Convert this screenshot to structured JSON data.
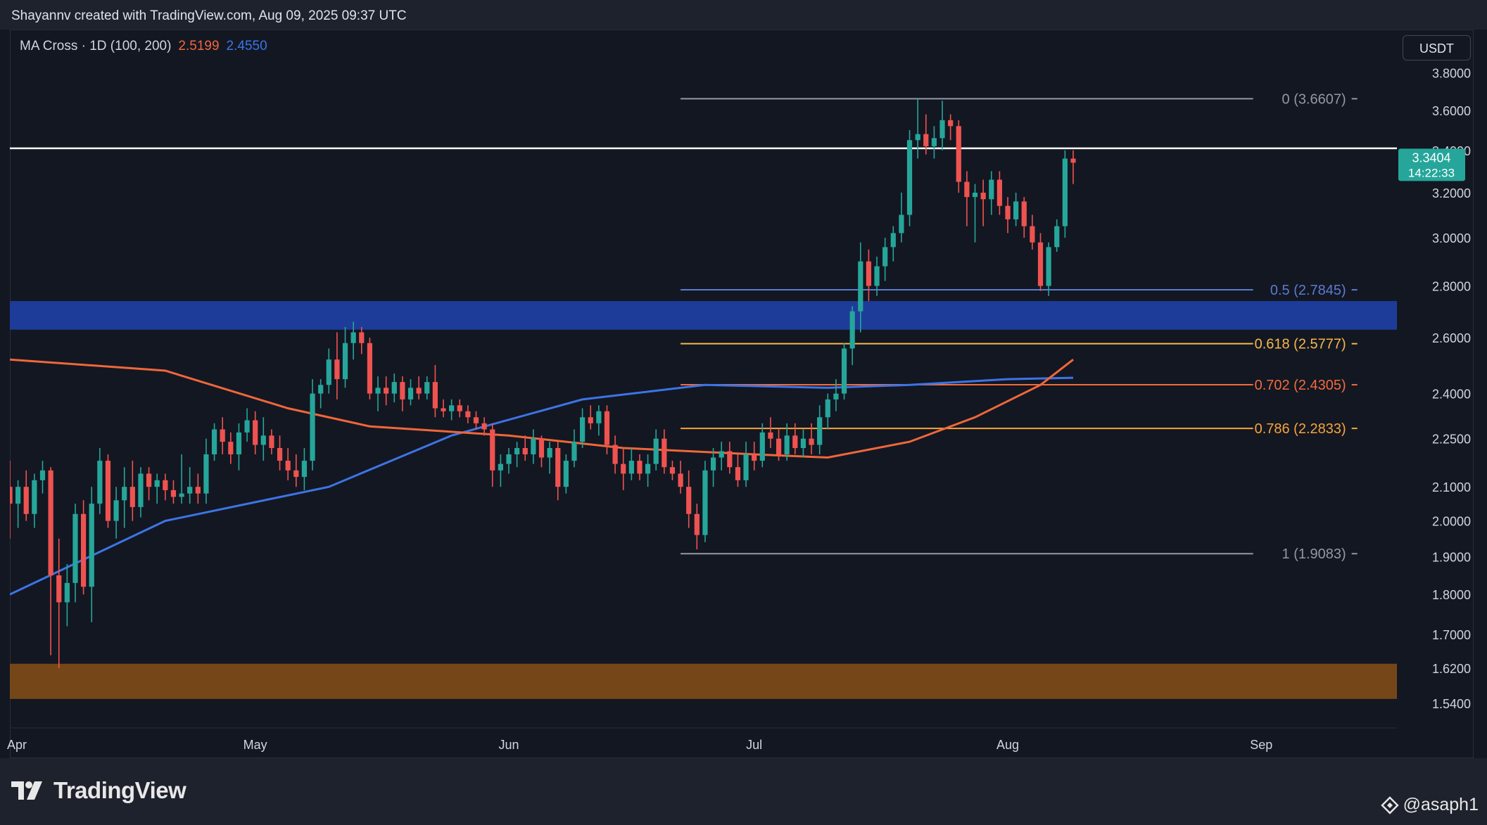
{
  "header": {
    "attribution": "Shayannv created with TradingView.com, Aug 09, 2025 09:37 UTC"
  },
  "legend": {
    "title": "MA Cross · 1D (100, 200)",
    "ma100_value": "2.5199",
    "ma200_value": "2.4550"
  },
  "currency_button": {
    "label": "USDT"
  },
  "price_tag": {
    "price": "3.3404",
    "countdown": "14:22:33"
  },
  "footer": {
    "brand": "TradingView",
    "handle": "@asaph1"
  },
  "colors": {
    "background": "#131722",
    "up": "#26a69a",
    "down": "#ef5350",
    "ma100": "#f0673a",
    "ma200": "#3d74e6",
    "support_zone": "#1e3ea0",
    "demand_zone": "#7a4a18",
    "resistance": "#ffffff"
  },
  "chart_data": {
    "type": "candlestick",
    "symbol_quote": "USDT",
    "y_axis": {
      "scale": "log",
      "ticks": [
        "3.8000",
        "3.6000",
        "3.4000",
        "3.2000",
        "3.0000",
        "2.8000",
        "2.6000",
        "2.4000",
        "2.2500",
        "2.1000",
        "2.0000",
        "1.9000",
        "1.8000",
        "1.7000",
        "1.6200",
        "1.5400"
      ]
    },
    "x_axis": {
      "ticks": [
        "Apr",
        "May",
        "Jun",
        "Jul",
        "Aug",
        "Sep"
      ],
      "tick_dates": [
        "2025-04-01",
        "2025-05-01",
        "2025-06-01",
        "2025-07-01",
        "2025-08-01",
        "2025-09-01"
      ]
    },
    "horizontal_lines": [
      {
        "name": "resistance",
        "price": 3.41
      }
    ],
    "zones": [
      {
        "name": "support-zone",
        "low": 2.63,
        "high": 2.74
      },
      {
        "name": "demand-zone",
        "low": 1.55,
        "high": 1.63
      }
    ],
    "fibonacci": {
      "start_date": "2025-06-22",
      "end_date": "2025-08-31",
      "levels": [
        {
          "level": "0",
          "price": 3.6607,
          "label": "0 (3.6607)",
          "color": "#9598a1"
        },
        {
          "level": "0.5",
          "price": 2.7845,
          "label": "0.5 (2.7845)",
          "color": "#5b7bd1"
        },
        {
          "level": "0.618",
          "price": 2.5777,
          "label": "0.618 (2.5777)",
          "color": "#f7b84a"
        },
        {
          "level": "0.702",
          "price": 2.4305,
          "label": "0.702 (2.4305)",
          "color": "#f26b3a"
        },
        {
          "level": "0.786",
          "price": 2.2833,
          "label": "0.786 (2.2833)",
          "color": "#f7a43a"
        },
        {
          "level": "1",
          "price": 1.9083,
          "label": "1 (1.9083)",
          "color": "#9598a1"
        }
      ]
    },
    "ma100": {
      "name": "MA 100",
      "points": [
        [
          "2025-04-01",
          2.52
        ],
        [
          "2025-04-20",
          2.48
        ],
        [
          "2025-05-05",
          2.35
        ],
        [
          "2025-05-15",
          2.29
        ],
        [
          "2025-06-01",
          2.26
        ],
        [
          "2025-06-15",
          2.22
        ],
        [
          "2025-07-01",
          2.2
        ],
        [
          "2025-07-10",
          2.19
        ],
        [
          "2025-07-20",
          2.24
        ],
        [
          "2025-07-28",
          2.32
        ],
        [
          "2025-08-05",
          2.43
        ],
        [
          "2025-08-09",
          2.52
        ]
      ]
    },
    "ma200": {
      "name": "MA 200",
      "points": [
        [
          "2025-04-01",
          1.8
        ],
        [
          "2025-04-20",
          2.0
        ],
        [
          "2025-05-10",
          2.1
        ],
        [
          "2025-05-25",
          2.26
        ],
        [
          "2025-06-10",
          2.38
        ],
        [
          "2025-06-25",
          2.43
        ],
        [
          "2025-07-10",
          2.42
        ],
        [
          "2025-07-20",
          2.43
        ],
        [
          "2025-08-01",
          2.45
        ],
        [
          "2025-08-09",
          2.455
        ]
      ]
    },
    "candles": [
      [
        "2025-04-01",
        2.1,
        2.18,
        1.95,
        2.05
      ],
      [
        "2025-04-02",
        2.05,
        2.12,
        1.98,
        2.1
      ],
      [
        "2025-04-03",
        2.1,
        2.15,
        2.0,
        2.02
      ],
      [
        "2025-04-04",
        2.02,
        2.14,
        1.98,
        2.12
      ],
      [
        "2025-04-05",
        2.12,
        2.18,
        2.08,
        2.15
      ],
      [
        "2025-04-06",
        2.15,
        2.16,
        1.65,
        1.85
      ],
      [
        "2025-04-07",
        1.85,
        1.95,
        1.62,
        1.78
      ],
      [
        "2025-04-08",
        1.78,
        1.88,
        1.72,
        1.83
      ],
      [
        "2025-04-09",
        1.83,
        2.05,
        1.78,
        2.02
      ],
      [
        "2025-04-10",
        2.02,
        2.06,
        1.8,
        1.82
      ],
      [
        "2025-04-11",
        1.82,
        2.1,
        1.73,
        2.05
      ],
      [
        "2025-04-12",
        2.05,
        2.22,
        2.02,
        2.18
      ],
      [
        "2025-04-13",
        2.18,
        2.2,
        1.98,
        2.0
      ],
      [
        "2025-04-14",
        2.0,
        2.1,
        1.95,
        2.06
      ],
      [
        "2025-04-15",
        2.06,
        2.16,
        1.98,
        2.1
      ],
      [
        "2025-04-16",
        2.1,
        2.18,
        2.0,
        2.04
      ],
      [
        "2025-04-17",
        2.04,
        2.16,
        2.01,
        2.14
      ],
      [
        "2025-04-18",
        2.14,
        2.16,
        2.06,
        2.1
      ],
      [
        "2025-04-19",
        2.1,
        2.14,
        2.05,
        2.12
      ],
      [
        "2025-04-20",
        2.12,
        2.14,
        2.06,
        2.09
      ],
      [
        "2025-04-21",
        2.09,
        2.12,
        2.05,
        2.07
      ],
      [
        "2025-04-22",
        2.07,
        2.2,
        2.05,
        2.08
      ],
      [
        "2025-04-23",
        2.08,
        2.16,
        2.05,
        2.1
      ],
      [
        "2025-04-24",
        2.1,
        2.14,
        2.05,
        2.08
      ],
      [
        "2025-04-25",
        2.08,
        2.25,
        2.05,
        2.2
      ],
      [
        "2025-04-26",
        2.2,
        2.3,
        2.18,
        2.28
      ],
      [
        "2025-04-27",
        2.28,
        2.32,
        2.2,
        2.24
      ],
      [
        "2025-04-28",
        2.24,
        2.27,
        2.17,
        2.2
      ],
      [
        "2025-04-29",
        2.2,
        2.3,
        2.15,
        2.27
      ],
      [
        "2025-04-30",
        2.27,
        2.35,
        2.24,
        2.31
      ],
      [
        "2025-05-01",
        2.31,
        2.34,
        2.2,
        2.23
      ],
      [
        "2025-05-02",
        2.23,
        2.32,
        2.18,
        2.26
      ],
      [
        "2025-05-03",
        2.26,
        2.28,
        2.2,
        2.22
      ],
      [
        "2025-05-04",
        2.22,
        2.26,
        2.15,
        2.18
      ],
      [
        "2025-05-05",
        2.18,
        2.22,
        2.12,
        2.15
      ],
      [
        "2025-05-06",
        2.15,
        2.2,
        2.1,
        2.13
      ],
      [
        "2025-05-07",
        2.13,
        2.22,
        2.09,
        2.18
      ],
      [
        "2025-05-08",
        2.18,
        2.45,
        2.15,
        2.4
      ],
      [
        "2025-05-09",
        2.4,
        2.45,
        2.35,
        2.43
      ],
      [
        "2025-05-10",
        2.43,
        2.56,
        2.4,
        2.52
      ],
      [
        "2025-05-11",
        2.52,
        2.62,
        2.38,
        2.45
      ],
      [
        "2025-05-12",
        2.45,
        2.64,
        2.42,
        2.58
      ],
      [
        "2025-05-13",
        2.58,
        2.66,
        2.52,
        2.62
      ],
      [
        "2025-05-14",
        2.62,
        2.64,
        2.54,
        2.58
      ],
      [
        "2025-05-15",
        2.58,
        2.6,
        2.38,
        2.4
      ],
      [
        "2025-05-16",
        2.4,
        2.46,
        2.34,
        2.42
      ],
      [
        "2025-05-17",
        2.42,
        2.46,
        2.36,
        2.4
      ],
      [
        "2025-05-18",
        2.4,
        2.47,
        2.37,
        2.44
      ],
      [
        "2025-05-19",
        2.44,
        2.46,
        2.34,
        2.38
      ],
      [
        "2025-05-20",
        2.38,
        2.45,
        2.36,
        2.42
      ],
      [
        "2025-05-21",
        2.42,
        2.46,
        2.38,
        2.4
      ],
      [
        "2025-05-22",
        2.4,
        2.46,
        2.38,
        2.44
      ],
      [
        "2025-05-23",
        2.44,
        2.5,
        2.32,
        2.35
      ],
      [
        "2025-05-24",
        2.35,
        2.38,
        2.32,
        2.34
      ],
      [
        "2025-05-25",
        2.34,
        2.38,
        2.31,
        2.36
      ],
      [
        "2025-05-26",
        2.36,
        2.38,
        2.32,
        2.34
      ],
      [
        "2025-05-27",
        2.34,
        2.36,
        2.3,
        2.32
      ],
      [
        "2025-05-28",
        2.32,
        2.34,
        2.28,
        2.3
      ],
      [
        "2025-05-29",
        2.3,
        2.32,
        2.26,
        2.28
      ],
      [
        "2025-05-30",
        2.28,
        2.3,
        2.1,
        2.15
      ],
      [
        "2025-05-31",
        2.15,
        2.2,
        2.1,
        2.17
      ],
      [
        "2025-06-01",
        2.17,
        2.22,
        2.14,
        2.2
      ],
      [
        "2025-06-02",
        2.2,
        2.24,
        2.16,
        2.22
      ],
      [
        "2025-06-03",
        2.22,
        2.26,
        2.18,
        2.2
      ],
      [
        "2025-06-04",
        2.2,
        2.28,
        2.17,
        2.25
      ],
      [
        "2025-06-05",
        2.25,
        2.26,
        2.16,
        2.19
      ],
      [
        "2025-06-06",
        2.19,
        2.24,
        2.14,
        2.22
      ],
      [
        "2025-06-07",
        2.22,
        2.24,
        2.06,
        2.1
      ],
      [
        "2025-06-08",
        2.1,
        2.2,
        2.08,
        2.18
      ],
      [
        "2025-06-09",
        2.18,
        2.28,
        2.16,
        2.24
      ],
      [
        "2025-06-10",
        2.24,
        2.35,
        2.22,
        2.32
      ],
      [
        "2025-06-11",
        2.32,
        2.36,
        2.28,
        2.3
      ],
      [
        "2025-06-12",
        2.3,
        2.36,
        2.26,
        2.34
      ],
      [
        "2025-06-13",
        2.34,
        2.36,
        2.2,
        2.23
      ],
      [
        "2025-06-14",
        2.23,
        2.26,
        2.14,
        2.17
      ],
      [
        "2025-06-15",
        2.17,
        2.22,
        2.09,
        2.14
      ],
      [
        "2025-06-16",
        2.14,
        2.22,
        2.12,
        2.18
      ],
      [
        "2025-06-17",
        2.18,
        2.2,
        2.12,
        2.14
      ],
      [
        "2025-06-18",
        2.14,
        2.2,
        2.1,
        2.17
      ],
      [
        "2025-06-19",
        2.17,
        2.28,
        2.15,
        2.25
      ],
      [
        "2025-06-20",
        2.25,
        2.28,
        2.14,
        2.16
      ],
      [
        "2025-06-21",
        2.16,
        2.18,
        2.12,
        2.14
      ],
      [
        "2025-06-22",
        2.14,
        2.18,
        2.08,
        2.1
      ],
      [
        "2025-06-23",
        2.1,
        2.15,
        1.98,
        2.02
      ],
      [
        "2025-06-24",
        2.02,
        2.05,
        1.92,
        1.96
      ],
      [
        "2025-06-25",
        1.96,
        2.18,
        1.94,
        2.15
      ],
      [
        "2025-06-26",
        2.15,
        2.22,
        2.1,
        2.19
      ],
      [
        "2025-06-27",
        2.19,
        2.24,
        2.15,
        2.21
      ],
      [
        "2025-06-28",
        2.21,
        2.24,
        2.14,
        2.16
      ],
      [
        "2025-06-29",
        2.16,
        2.2,
        2.1,
        2.12
      ],
      [
        "2025-06-30",
        2.12,
        2.24,
        2.1,
        2.2
      ],
      [
        "2025-07-01",
        2.2,
        2.24,
        2.15,
        2.18
      ],
      [
        "2025-07-02",
        2.18,
        2.3,
        2.16,
        2.27
      ],
      [
        "2025-07-03",
        2.27,
        2.32,
        2.22,
        2.25
      ],
      [
        "2025-07-04",
        2.25,
        2.28,
        2.18,
        2.2
      ],
      [
        "2025-07-05",
        2.2,
        2.3,
        2.18,
        2.26
      ],
      [
        "2025-07-06",
        2.26,
        2.3,
        2.2,
        2.22
      ],
      [
        "2025-07-07",
        2.22,
        2.28,
        2.19,
        2.25
      ],
      [
        "2025-07-08",
        2.25,
        2.3,
        2.2,
        2.23
      ],
      [
        "2025-07-09",
        2.23,
        2.36,
        2.2,
        2.32
      ],
      [
        "2025-07-10",
        2.32,
        2.4,
        2.28,
        2.38
      ],
      [
        "2025-07-11",
        2.38,
        2.45,
        2.34,
        2.4
      ],
      [
        "2025-07-12",
        2.4,
        2.58,
        2.38,
        2.56
      ],
      [
        "2025-07-13",
        2.56,
        2.72,
        2.5,
        2.7
      ],
      [
        "2025-07-14",
        2.7,
        2.98,
        2.62,
        2.9
      ],
      [
        "2025-07-15",
        2.9,
        2.95,
        2.74,
        2.8
      ],
      [
        "2025-07-16",
        2.8,
        2.92,
        2.76,
        2.88
      ],
      [
        "2025-07-17",
        2.88,
        3.0,
        2.82,
        2.96
      ],
      [
        "2025-07-18",
        2.96,
        3.05,
        2.9,
        3.02
      ],
      [
        "2025-07-19",
        3.02,
        3.2,
        2.98,
        3.1
      ],
      [
        "2025-07-20",
        3.1,
        3.5,
        3.05,
        3.45
      ],
      [
        "2025-07-21",
        3.45,
        3.66,
        3.36,
        3.48
      ],
      [
        "2025-07-22",
        3.48,
        3.58,
        3.38,
        3.42
      ],
      [
        "2025-07-23",
        3.42,
        3.52,
        3.36,
        3.46
      ],
      [
        "2025-07-24",
        3.46,
        3.65,
        3.4,
        3.55
      ],
      [
        "2025-07-25",
        3.55,
        3.58,
        3.45,
        3.52
      ],
      [
        "2025-07-26",
        3.52,
        3.55,
        3.2,
        3.25
      ],
      [
        "2025-07-27",
        3.25,
        3.3,
        3.05,
        3.18
      ],
      [
        "2025-07-28",
        3.18,
        3.24,
        2.98,
        3.2
      ],
      [
        "2025-07-29",
        3.2,
        3.26,
        3.05,
        3.17
      ],
      [
        "2025-07-30",
        3.17,
        3.3,
        3.1,
        3.26
      ],
      [
        "2025-07-31",
        3.26,
        3.3,
        3.1,
        3.14
      ],
      [
        "2025-08-01",
        3.14,
        3.18,
        3.02,
        3.08
      ],
      [
        "2025-08-02",
        3.08,
        3.2,
        3.05,
        3.16
      ],
      [
        "2025-08-03",
        3.16,
        3.18,
        3.0,
        3.05
      ],
      [
        "2025-08-04",
        3.05,
        3.1,
        2.95,
        2.98
      ],
      [
        "2025-08-05",
        2.98,
        3.02,
        2.78,
        2.8
      ],
      [
        "2025-08-06",
        2.8,
        2.98,
        2.76,
        2.96
      ],
      [
        "2025-08-07",
        2.96,
        3.08,
        2.94,
        3.05
      ],
      [
        "2025-08-08",
        3.05,
        3.4,
        3.0,
        3.36
      ],
      [
        "2025-08-09",
        3.36,
        3.4,
        3.24,
        3.3404
      ]
    ]
  }
}
